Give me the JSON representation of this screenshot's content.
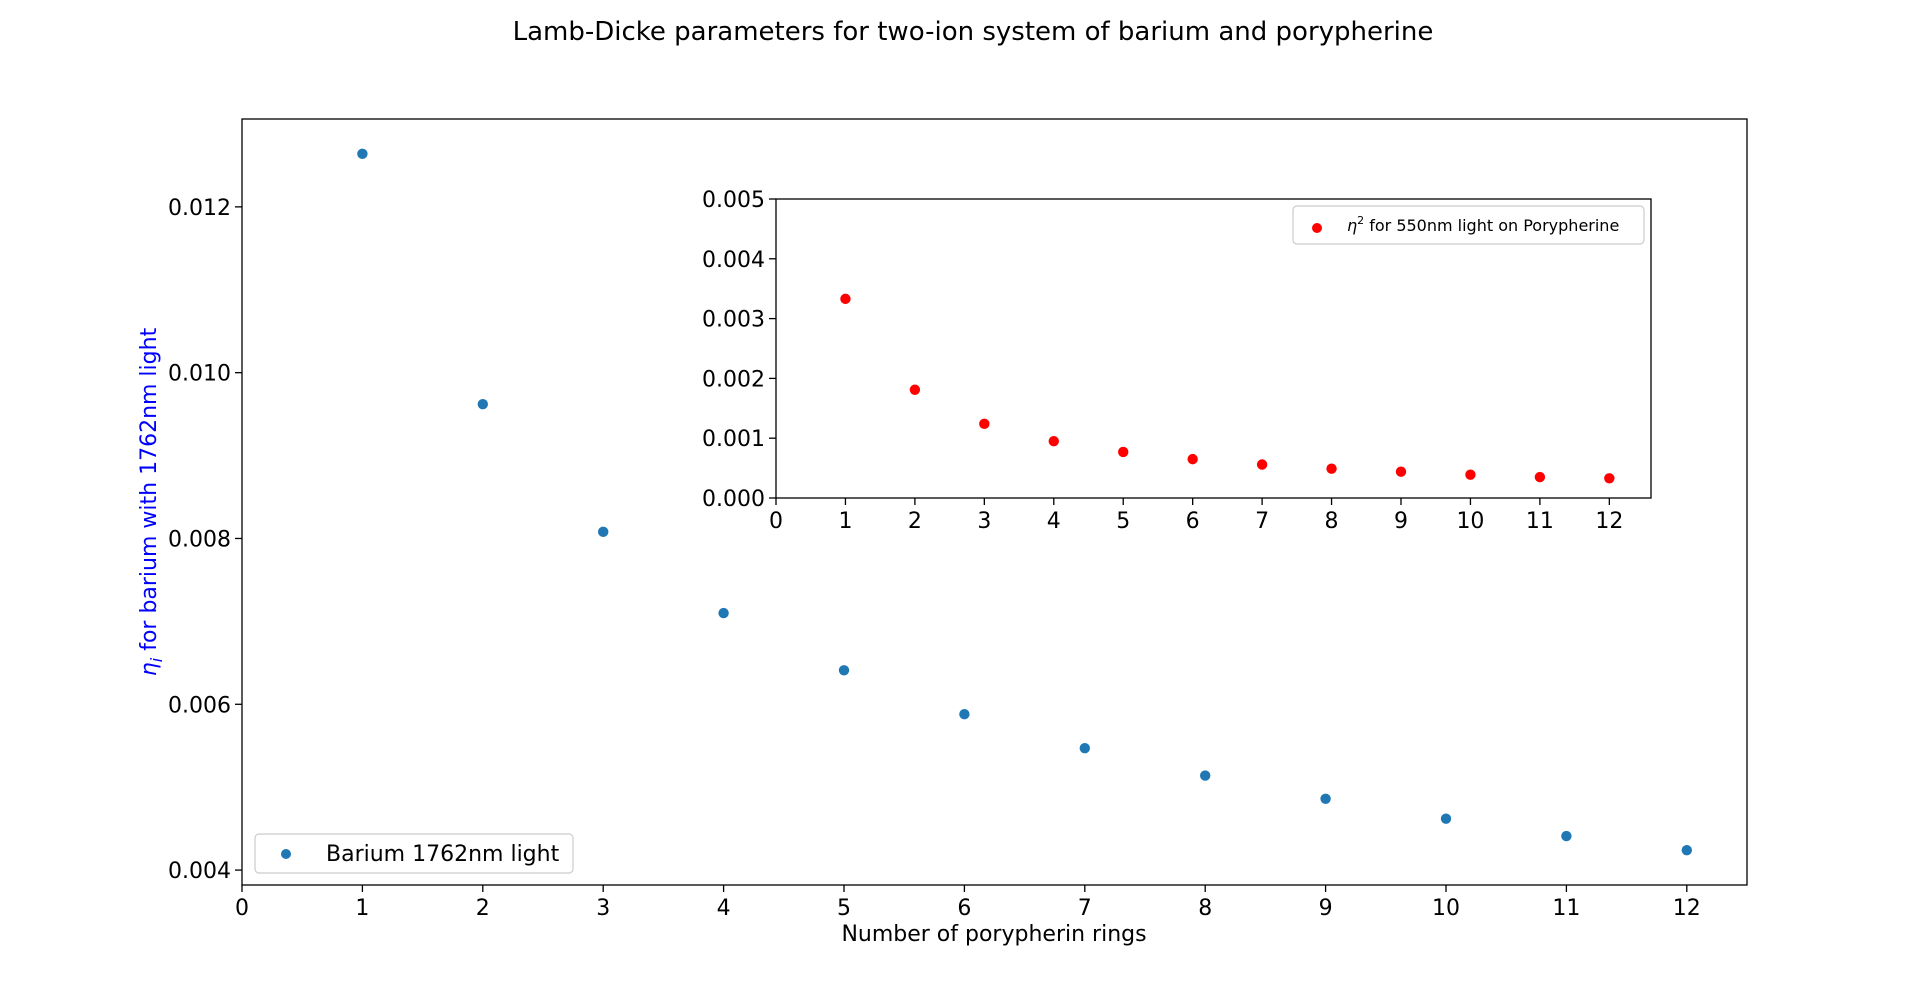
{
  "figure": {
    "title": "Lamb-Dicke parameters for two-ion system of barium and porypherine"
  },
  "colors": {
    "barium": "#1f77b4",
    "porypherine": "#ff0000",
    "ylabel": "#0000ff"
  },
  "chart_data": [
    {
      "type": "scatter",
      "xlabel": "Number of porypherin rings",
      "ylabel_symbol": "η",
      "ylabel_subscript": "i",
      "ylabel_rest": " for barium with 1762nm light",
      "xlim": [
        0,
        12.5
      ],
      "ylim": [
        0.00382,
        0.01306
      ],
      "xticks": [
        "0",
        "1",
        "2",
        "3",
        "4",
        "5",
        "6",
        "7",
        "8",
        "9",
        "10",
        "11",
        "12"
      ],
      "yticks": [
        "0.004",
        "0.006",
        "0.008",
        "0.010",
        "0.012"
      ],
      "legend_position": "lower-left",
      "grid": false,
      "series": [
        {
          "name": "Barium 1762nm light",
          "x": [
            1,
            2,
            3,
            4,
            5,
            6,
            7,
            8,
            9,
            10,
            11,
            12
          ],
          "y": [
            0.01264,
            0.00962,
            0.00808,
            0.0071,
            0.00641,
            0.00588,
            0.00547,
            0.00514,
            0.00486,
            0.00462,
            0.00441,
            0.00424
          ]
        }
      ]
    },
    {
      "type": "scatter",
      "inset": true,
      "xlim": [
        0,
        12.6
      ],
      "ylim": [
        0,
        0.005
      ],
      "xticks": [
        "0",
        "1",
        "2",
        "3",
        "4",
        "5",
        "6",
        "7",
        "8",
        "9",
        "10",
        "11",
        "12"
      ],
      "yticks": [
        "0.000",
        "0.001",
        "0.002",
        "0.003",
        "0.004",
        "0.005"
      ],
      "legend_position": "top-right",
      "grid": false,
      "series": [
        {
          "name_symbol": "η",
          "name_superscript": "2",
          "name_rest": " for 550nm light on Porypherine",
          "x": [
            1,
            2,
            3,
            4,
            5,
            6,
            7,
            8,
            9,
            10,
            11,
            12
          ],
          "y": [
            0.00333,
            0.00181,
            0.00124,
            0.00095,
            0.00077,
            0.00065,
            0.00056,
            0.00049,
            0.00044,
            0.00039,
            0.00035,
            0.00033
          ]
        }
      ]
    }
  ]
}
